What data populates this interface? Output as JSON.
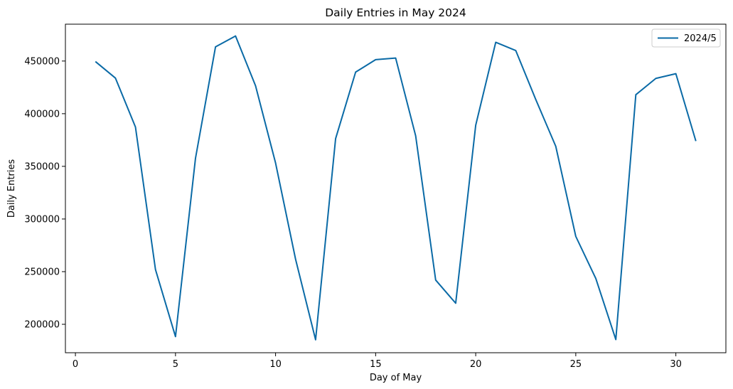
{
  "chart_data": {
    "type": "line",
    "title": "Daily Entries in May 2024",
    "xlabel": "Day of May",
    "ylabel": "Daily Entries",
    "xlim": [
      -0.5,
      32.5
    ],
    "ylim": [
      173000,
      485000
    ],
    "xticks": [
      0,
      5,
      10,
      15,
      20,
      25,
      30
    ],
    "yticks": [
      200000,
      250000,
      300000,
      350000,
      400000,
      450000
    ],
    "grid": false,
    "legend": "top-right",
    "series": [
      {
        "name": "2024/5",
        "color": "#0a6aa6",
        "x": [
          1,
          2,
          3,
          4,
          5,
          6,
          7,
          8,
          9,
          10,
          11,
          12,
          13,
          14,
          15,
          16,
          17,
          18,
          19,
          20,
          21,
          22,
          23,
          24,
          25,
          26,
          27,
          28,
          29,
          30,
          31
        ],
        "y": [
          449500,
          433800,
          387300,
          252000,
          188300,
          357700,
          463500,
          473800,
          426500,
          353200,
          261800,
          185300,
          376300,
          439500,
          451300,
          452800,
          379000,
          242000,
          220000,
          389000,
          467800,
          460000,
          413500,
          369000,
          283500,
          243500,
          185500,
          418000,
          433500,
          438000,
          374000
        ]
      }
    ]
  }
}
